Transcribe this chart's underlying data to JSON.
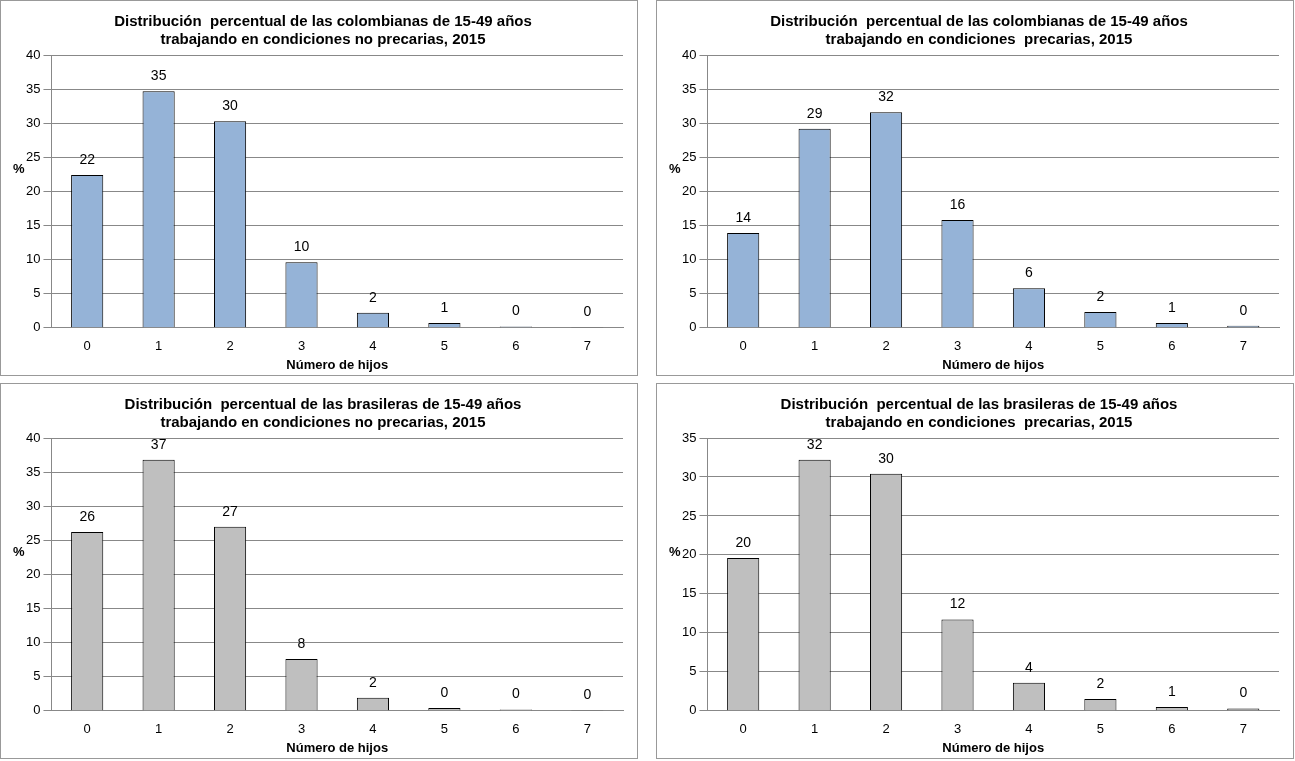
{
  "chart_data": [
    {
      "type": "bar",
      "title": "Distribución  percentual de las colombianas de 15-49 años\ntrabajando en condiciones no precarias, 2015",
      "xlabel": "Número de hijos",
      "ylabel": "%",
      "categories": [
        "0",
        "1",
        "2",
        "3",
        "4",
        "5",
        "6",
        "7"
      ],
      "values": [
        22.4,
        34.7,
        30.3,
        9.6,
        2.2,
        0.7,
        0.2,
        0.1
      ],
      "value_labels": [
        "22",
        "35",
        "30",
        "10",
        "2",
        "1",
        "0",
        "0"
      ],
      "color": "#95b3d7",
      "ylim": [
        0,
        40
      ],
      "yticks": [
        0,
        5,
        10,
        15,
        20,
        25,
        30,
        35,
        40
      ],
      "grid": "y",
      "legend": false
    },
    {
      "type": "bar",
      "title": "Distribución  percentual de las colombianas de 15-49 años\ntrabajando en condiciones  precarias, 2015",
      "xlabel": "Número de hijos",
      "ylabel": "%",
      "categories": [
        "0",
        "1",
        "2",
        "3",
        "4",
        "5",
        "6",
        "7"
      ],
      "values": [
        13.9,
        29.2,
        31.6,
        15.8,
        5.8,
        2.3,
        0.7,
        0.3
      ],
      "value_labels": [
        "14",
        "29",
        "32",
        "16",
        "6",
        "2",
        "1",
        "0"
      ],
      "color": "#95b3d7",
      "ylim": [
        0,
        40
      ],
      "yticks": [
        0,
        5,
        10,
        15,
        20,
        25,
        30,
        35,
        40
      ],
      "grid": "y",
      "legend": false
    },
    {
      "type": "bar",
      "title": "Distribución  percentual de las brasileras de 15-49 años\ntrabajando en condiciones no precarias, 2015",
      "xlabel": "Número de hijos",
      "ylabel": "%",
      "categories": [
        "0",
        "1",
        "2",
        "3",
        "4",
        "5",
        "6",
        "7"
      ],
      "values": [
        26.2,
        36.8,
        27.0,
        7.6,
        1.9,
        0.4,
        0.2,
        0.1
      ],
      "value_labels": [
        "26",
        "37",
        "27",
        "8",
        "2",
        "0",
        "0",
        "0"
      ],
      "color": "#bfbfbf",
      "ylim": [
        0,
        40
      ],
      "yticks": [
        0,
        5,
        10,
        15,
        20,
        25,
        30,
        35,
        40
      ],
      "grid": "y",
      "legend": false
    },
    {
      "type": "bar",
      "title": "Distribución  percentual de las brasileras de 15-49 años\ntrabajando en condiciones  precarias, 2015",
      "xlabel": "Número de hijos",
      "ylabel": "%",
      "categories": [
        "0",
        "1",
        "2",
        "3",
        "4",
        "5",
        "6",
        "7"
      ],
      "values": [
        19.6,
        32.2,
        30.4,
        11.7,
        3.6,
        1.5,
        0.5,
        0.3
      ],
      "value_labels": [
        "20",
        "32",
        "30",
        "12",
        "4",
        "2",
        "1",
        "0"
      ],
      "color": "#bfbfbf",
      "ylim": [
        0,
        35
      ],
      "yticks": [
        0,
        5,
        10,
        15,
        20,
        25,
        30,
        35
      ],
      "grid": "y",
      "legend": false
    }
  ]
}
